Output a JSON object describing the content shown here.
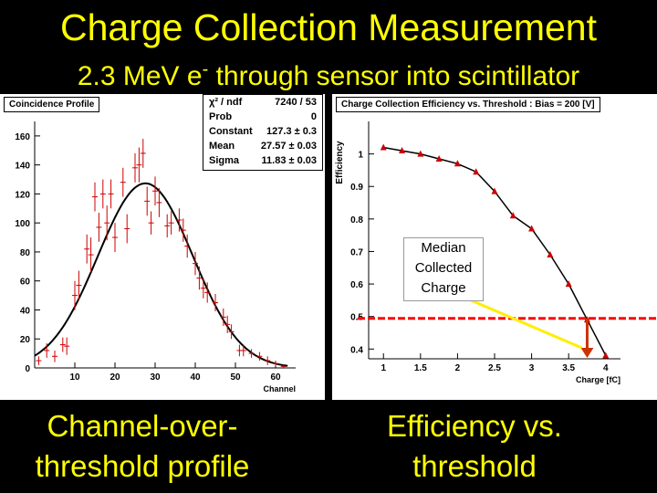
{
  "title": "Charge Collection Measurement",
  "subtitle_pre": "2.3 MeV e",
  "subtitle_sup": "-",
  "subtitle_post": " through sensor into scintillator",
  "caption_left": "Channel-over-threshold profile",
  "caption_right": "Efficiency vs. threshold",
  "colors": {
    "title": "#ffff00",
    "data": "#cc0000",
    "fit": "#000000",
    "arrow": "#ffee00",
    "threshold_line": "#ff0000"
  },
  "chart_data": [
    {
      "type": "scatter",
      "title": "Coincidence Profile",
      "xlabel": "Channel",
      "ylabel": "",
      "xlim": [
        0,
        65
      ],
      "ylim": [
        0,
        170
      ],
      "xticks": [
        10,
        20,
        30,
        40,
        50,
        60
      ],
      "yticks": [
        0,
        20,
        40,
        60,
        80,
        100,
        120,
        140,
        160
      ],
      "stats": [
        {
          "label": "χ² / ndf",
          "value": "7240 / 53"
        },
        {
          "label": "Prob",
          "value": "0"
        },
        {
          "label": "Constant",
          "value": "127.3 ± 0.3"
        },
        {
          "label": "Mean",
          "value": "27.57 ± 0.03"
        },
        {
          "label": "Sigma",
          "value": "11.83 ± 0.03"
        }
      ],
      "fit": {
        "constant": 127.3,
        "mean": 27.57,
        "sigma": 11.83
      },
      "points": [
        {
          "x": 1,
          "y": 5,
          "err": 3
        },
        {
          "x": 3,
          "y": 12,
          "err": 5
        },
        {
          "x": 5,
          "y": 8,
          "err": 4
        },
        {
          "x": 7,
          "y": 16,
          "err": 5
        },
        {
          "x": 8,
          "y": 15,
          "err": 6
        },
        {
          "x": 10,
          "y": 50,
          "err": 10
        },
        {
          "x": 11,
          "y": 57,
          "err": 10
        },
        {
          "x": 13,
          "y": 82,
          "err": 10
        },
        {
          "x": 14,
          "y": 78,
          "err": 12
        },
        {
          "x": 15,
          "y": 118,
          "err": 10
        },
        {
          "x": 16,
          "y": 97,
          "err": 10
        },
        {
          "x": 17,
          "y": 120,
          "err": 10
        },
        {
          "x": 18,
          "y": 100,
          "err": 12
        },
        {
          "x": 19,
          "y": 120,
          "err": 10
        },
        {
          "x": 20,
          "y": 90,
          "err": 10
        },
        {
          "x": 22,
          "y": 128,
          "err": 10
        },
        {
          "x": 23,
          "y": 96,
          "err": 10
        },
        {
          "x": 25,
          "y": 138,
          "err": 10
        },
        {
          "x": 26,
          "y": 140,
          "err": 12
        },
        {
          "x": 27,
          "y": 148,
          "err": 10
        },
        {
          "x": 28,
          "y": 115,
          "err": 10
        },
        {
          "x": 29,
          "y": 100,
          "err": 8
        },
        {
          "x": 30,
          "y": 122,
          "err": 10
        },
        {
          "x": 31,
          "y": 114,
          "err": 10
        },
        {
          "x": 33,
          "y": 98,
          "err": 8
        },
        {
          "x": 34,
          "y": 100,
          "err": 8
        },
        {
          "x": 36,
          "y": 102,
          "err": 8
        },
        {
          "x": 37,
          "y": 95,
          "err": 8
        },
        {
          "x": 38,
          "y": 84,
          "err": 8
        },
        {
          "x": 40,
          "y": 72,
          "err": 8
        },
        {
          "x": 41,
          "y": 62,
          "err": 8
        },
        {
          "x": 42,
          "y": 55,
          "err": 7
        },
        {
          "x": 43,
          "y": 52,
          "err": 7
        },
        {
          "x": 45,
          "y": 45,
          "err": 6
        },
        {
          "x": 47,
          "y": 35,
          "err": 6
        },
        {
          "x": 48,
          "y": 30,
          "err": 6
        },
        {
          "x": 49,
          "y": 25,
          "err": 5
        },
        {
          "x": 51,
          "y": 12,
          "err": 4
        },
        {
          "x": 52,
          "y": 12,
          "err": 4
        },
        {
          "x": 54,
          "y": 10,
          "err": 3
        },
        {
          "x": 56,
          "y": 8,
          "err": 3
        },
        {
          "x": 58,
          "y": 5,
          "err": 3
        },
        {
          "x": 60,
          "y": 3,
          "err": 2
        },
        {
          "x": 62,
          "y": 1,
          "err": 1
        }
      ]
    },
    {
      "type": "scatter",
      "title": "Charge Collection Efficiency vs. Threshold : Bias = 200 [V]",
      "xlabel": "Charge [fC]",
      "ylabel": "Efficiency",
      "xlim": [
        0.8,
        4.2
      ],
      "ylim": [
        0.37,
        1.1
      ],
      "xticks": [
        "1",
        "1.5",
        "2",
        "2.5",
        "3",
        "3.5",
        "4"
      ],
      "yticks": [
        "0.4",
        "0.5",
        "0.6",
        "0.7",
        "0.8",
        "0.9",
        "1"
      ],
      "threshold_efficiency": 0.5,
      "annotation": "Median Collected Charge",
      "points": [
        {
          "x": 1.0,
          "y": 1.02
        },
        {
          "x": 1.25,
          "y": 1.01
        },
        {
          "x": 1.5,
          "y": 1.0
        },
        {
          "x": 1.75,
          "y": 0.985
        },
        {
          "x": 2.0,
          "y": 0.97
        },
        {
          "x": 2.25,
          "y": 0.945
        },
        {
          "x": 2.5,
          "y": 0.885
        },
        {
          "x": 2.75,
          "y": 0.81
        },
        {
          "x": 3.0,
          "y": 0.77
        },
        {
          "x": 3.25,
          "y": 0.69
        },
        {
          "x": 3.5,
          "y": 0.6
        },
        {
          "x": 3.75,
          "y": 0.49
        },
        {
          "x": 4.0,
          "y": 0.38
        }
      ]
    }
  ]
}
